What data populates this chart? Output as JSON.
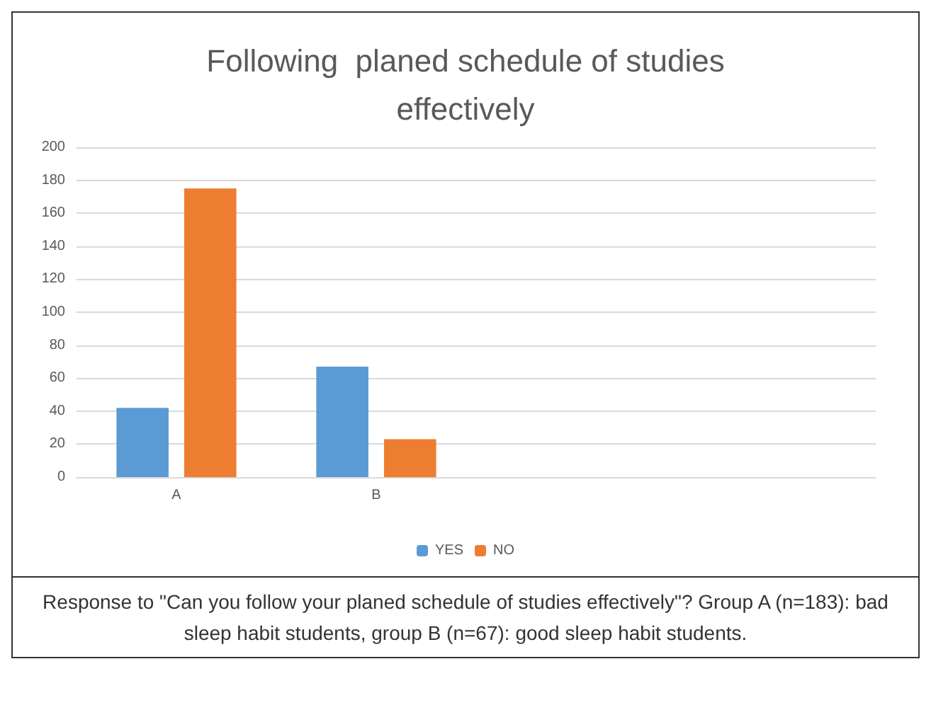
{
  "chart_data": {
    "type": "bar",
    "title": "Following  planed schedule of studies\neffectively",
    "categories": [
      "A",
      "B",
      null,
      null
    ],
    "series": [
      {
        "name": "YES",
        "color": "#5b9bd5",
        "values": [
          42,
          67,
          null,
          null
        ]
      },
      {
        "name": "NO",
        "color": "#ed7d31",
        "values": [
          175,
          23,
          null,
          null
        ]
      }
    ],
    "ylim": [
      0,
      200
    ],
    "yticks": [
      0,
      20,
      40,
      60,
      80,
      100,
      120,
      140,
      160,
      180,
      200
    ],
    "grid": "y",
    "legend": "bottom",
    "annotations": [
      "Response to \"Can you follow your planed schedule of studies effectively\"? Group A (n=183): bad sleep habit students, group B (n=67): good sleep habit students."
    ]
  }
}
